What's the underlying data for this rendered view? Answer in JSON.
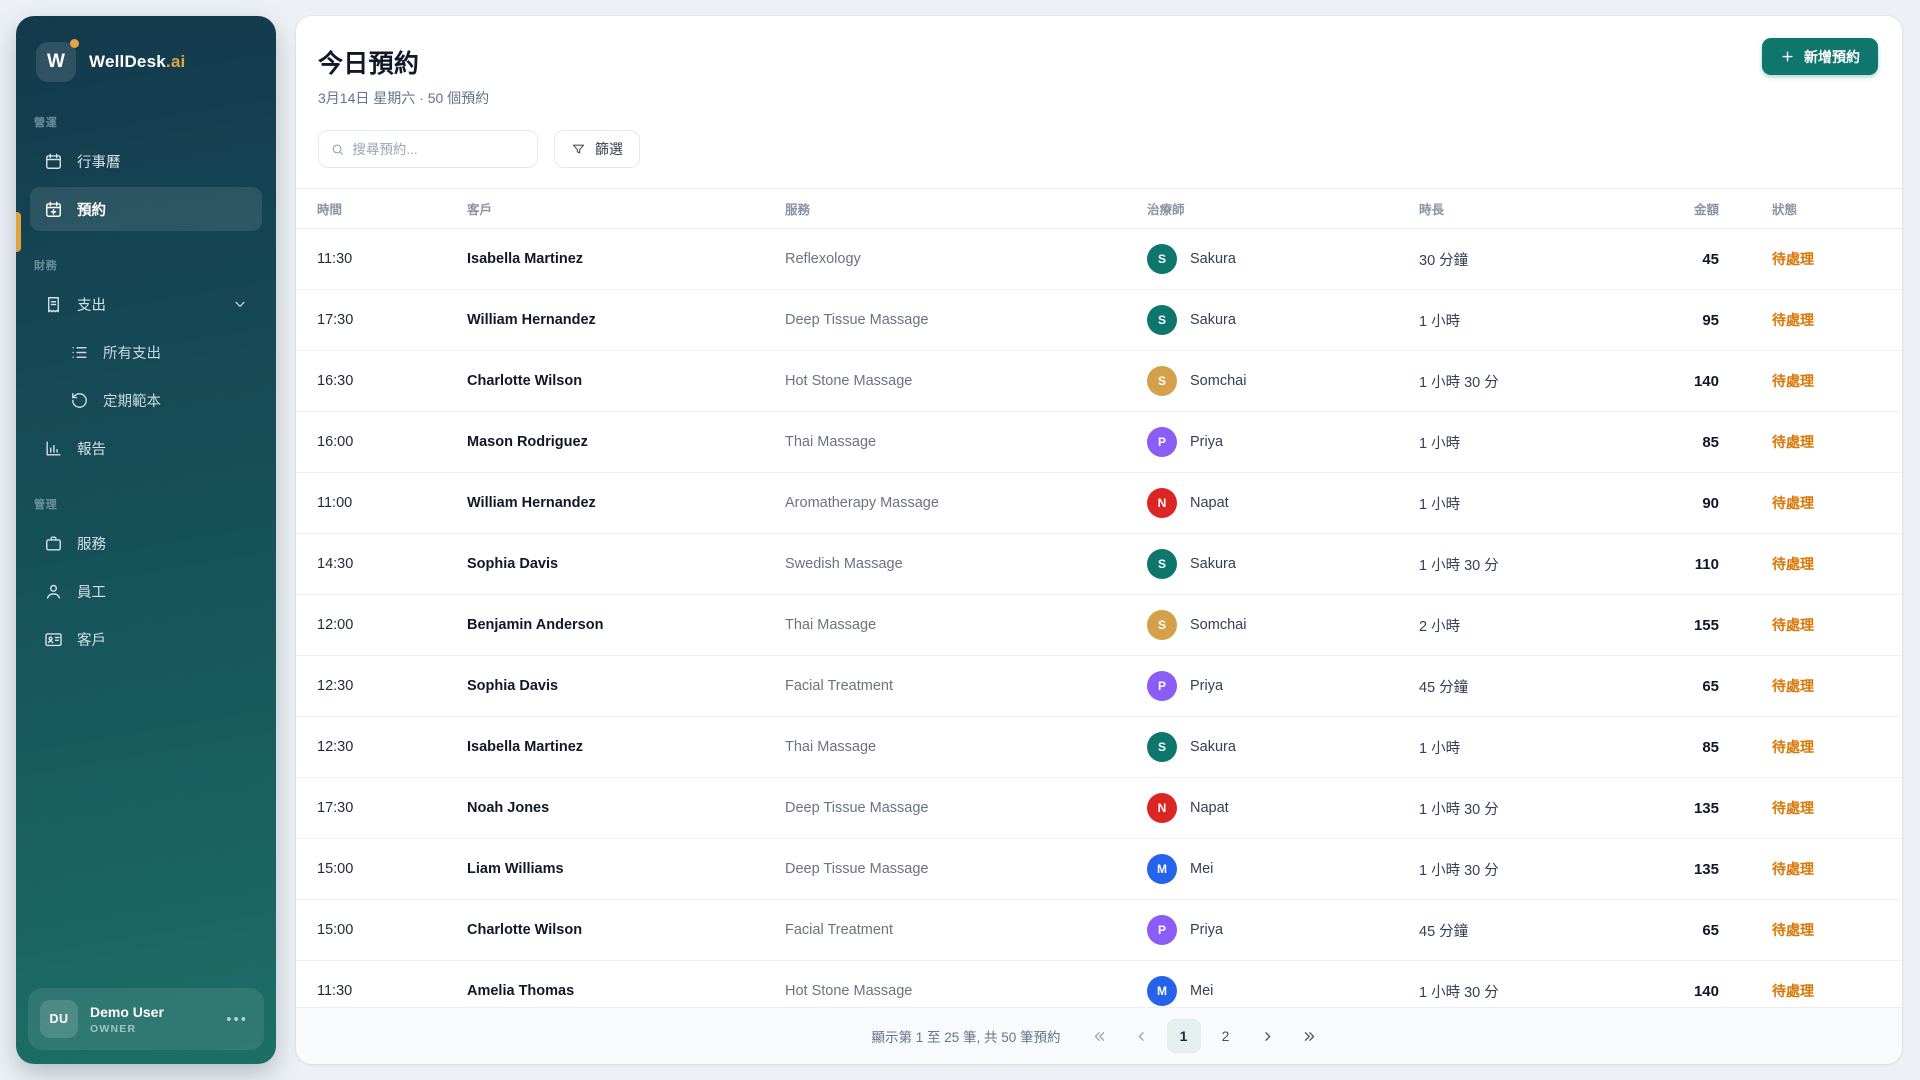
{
  "app": {
    "logo_letter": "W",
    "brand": "WellDesk",
    "brand_suffix": ".ai"
  },
  "colors": {
    "sidebar_top": "#14394d",
    "sidebar_bottom": "#1d6f67",
    "accent_gold": "#dfa440",
    "primary_teal": "#0f766e",
    "status_pending": "#d97706"
  },
  "sidebar": {
    "sections": [
      {
        "label": "營運",
        "items": [
          {
            "label": "行事曆",
            "icon": "calendar-icon",
            "active": false
          },
          {
            "label": "預約",
            "icon": "calendar-plus-icon",
            "active": true
          }
        ]
      },
      {
        "label": "財務",
        "items": [
          {
            "label": "支出",
            "icon": "receipt-icon",
            "chevron": true,
            "children": [
              {
                "label": "所有支出",
                "icon": "list-icon"
              },
              {
                "label": "定期範本",
                "icon": "refresh-icon"
              }
            ]
          },
          {
            "label": "報告",
            "icon": "bar-chart-icon"
          }
        ]
      },
      {
        "label": "管理",
        "items": [
          {
            "label": "服務",
            "icon": "briefcase-icon"
          },
          {
            "label": "員工",
            "icon": "user-icon"
          },
          {
            "label": "客戶",
            "icon": "id-card-icon"
          }
        ]
      }
    ],
    "user": {
      "initials": "DU",
      "name": "Demo User",
      "role": "OWNER"
    }
  },
  "header": {
    "title": "今日預約",
    "subtitle": "3月14日 星期六 · 50 個預約",
    "search_placeholder": "搜尋預約...",
    "filter_label": "篩選",
    "new_button_label": "新增預約"
  },
  "table": {
    "columns": [
      "時間",
      "客戶",
      "服務",
      "治療師",
      "時長",
      "金額",
      "狀態"
    ],
    "rows": [
      {
        "time": "11:30",
        "customer": "Isabella Martinez",
        "service": "Reflexology",
        "therapist": "Sakura",
        "avatar_letter": "S",
        "avatar_color": "#0f766e",
        "duration": "30 分鐘",
        "amount": "45",
        "status": "待處理"
      },
      {
        "time": "17:30",
        "customer": "William Hernandez",
        "service": "Deep Tissue Massage",
        "therapist": "Sakura",
        "avatar_letter": "S",
        "avatar_color": "#0f766e",
        "duration": "1 小時",
        "amount": "95",
        "status": "待處理"
      },
      {
        "time": "16:30",
        "customer": "Charlotte Wilson",
        "service": "Hot Stone Massage",
        "therapist": "Somchai",
        "avatar_letter": "S",
        "avatar_color": "#d4a04a",
        "duration": "1 小時 30 分",
        "amount": "140",
        "status": "待處理"
      },
      {
        "time": "16:00",
        "customer": "Mason Rodriguez",
        "service": "Thai Massage",
        "therapist": "Priya",
        "avatar_letter": "P",
        "avatar_color": "#8b5cf6",
        "duration": "1 小時",
        "amount": "85",
        "status": "待處理"
      },
      {
        "time": "11:00",
        "customer": "William Hernandez",
        "service": "Aromatherapy Massage",
        "therapist": "Napat",
        "avatar_letter": "N",
        "avatar_color": "#dc2626",
        "duration": "1 小時",
        "amount": "90",
        "status": "待處理"
      },
      {
        "time": "14:30",
        "customer": "Sophia Davis",
        "service": "Swedish Massage",
        "therapist": "Sakura",
        "avatar_letter": "S",
        "avatar_color": "#0f766e",
        "duration": "1 小時 30 分",
        "amount": "110",
        "status": "待處理"
      },
      {
        "time": "12:00",
        "customer": "Benjamin Anderson",
        "service": "Thai Massage",
        "therapist": "Somchai",
        "avatar_letter": "S",
        "avatar_color": "#d4a04a",
        "duration": "2 小時",
        "amount": "155",
        "status": "待處理"
      },
      {
        "time": "12:30",
        "customer": "Sophia Davis",
        "service": "Facial Treatment",
        "therapist": "Priya",
        "avatar_letter": "P",
        "avatar_color": "#8b5cf6",
        "duration": "45 分鐘",
        "amount": "65",
        "status": "待處理"
      },
      {
        "time": "12:30",
        "customer": "Isabella Martinez",
        "service": "Thai Massage",
        "therapist": "Sakura",
        "avatar_letter": "S",
        "avatar_color": "#0f766e",
        "duration": "1 小時",
        "amount": "85",
        "status": "待處理"
      },
      {
        "time": "17:30",
        "customer": "Noah Jones",
        "service": "Deep Tissue Massage",
        "therapist": "Napat",
        "avatar_letter": "N",
        "avatar_color": "#dc2626",
        "duration": "1 小時 30 分",
        "amount": "135",
        "status": "待處理"
      },
      {
        "time": "15:00",
        "customer": "Liam Williams",
        "service": "Deep Tissue Massage",
        "therapist": "Mei",
        "avatar_letter": "M",
        "avatar_color": "#2563eb",
        "duration": "1 小時 30 分",
        "amount": "135",
        "status": "待處理"
      },
      {
        "time": "15:00",
        "customer": "Charlotte Wilson",
        "service": "Facial Treatment",
        "therapist": "Priya",
        "avatar_letter": "P",
        "avatar_color": "#8b5cf6",
        "duration": "45 分鐘",
        "amount": "65",
        "status": "待處理"
      },
      {
        "time": "11:30",
        "customer": "Amelia Thomas",
        "service": "Hot Stone Massage",
        "therapist": "Mei",
        "avatar_letter": "M",
        "avatar_color": "#2563eb",
        "duration": "1 小時 30 分",
        "amount": "140",
        "status": "待處理"
      }
    ]
  },
  "pagination": {
    "summary": "顯示第 1 至 25 筆, 共 50 筆預約",
    "pages": [
      "1",
      "2"
    ],
    "current_page": "1"
  }
}
